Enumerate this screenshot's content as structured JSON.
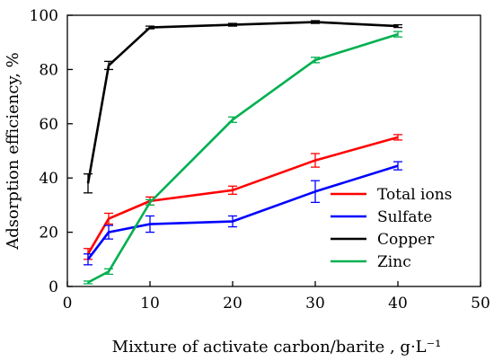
{
  "chart_data": {
    "type": "line",
    "xlabel": "Mixture of activate carbon/barite , g·L⁻¹",
    "ylabel": "Adsorption efficiency, %",
    "xlim": [
      0,
      50
    ],
    "ylim": [
      0,
      100
    ],
    "xticks": [
      0,
      10,
      20,
      30,
      40,
      50
    ],
    "yticks": [
      0,
      20,
      40,
      60,
      80,
      100
    ],
    "grid": false,
    "legend_position": "right",
    "series": [
      {
        "name": "Total ions",
        "color": "#ff0000",
        "x": [
          2.5,
          5,
          10,
          20,
          30,
          40
        ],
        "y": [
          12,
          25,
          31.5,
          35.5,
          46.5,
          55
        ],
        "err": [
          2,
          2,
          1.5,
          1.5,
          2.5,
          1
        ]
      },
      {
        "name": "Sulfate",
        "color": "#0000ff",
        "x": [
          2.5,
          5,
          10,
          20,
          30,
          40
        ],
        "y": [
          10,
          20,
          23,
          24,
          35,
          44.5
        ],
        "err": [
          2,
          2.5,
          3,
          2,
          4,
          1.5
        ]
      },
      {
        "name": "Copper",
        "color": "#000000",
        "x": [
          2.5,
          5,
          10,
          20,
          30,
          40
        ],
        "y": [
          38,
          81.5,
          95.5,
          96.5,
          97.5,
          96
        ],
        "err": [
          3.5,
          1.5,
          0.5,
          0.5,
          0.5,
          0.5
        ]
      },
      {
        "name": "Zinc",
        "color": "#00b050",
        "x": [
          2.5,
          5,
          10,
          20,
          30,
          40
        ],
        "y": [
          1.5,
          5.5,
          31,
          61.5,
          83.5,
          93
        ],
        "err": [
          0.5,
          1,
          1,
          1,
          1,
          1
        ]
      }
    ]
  }
}
